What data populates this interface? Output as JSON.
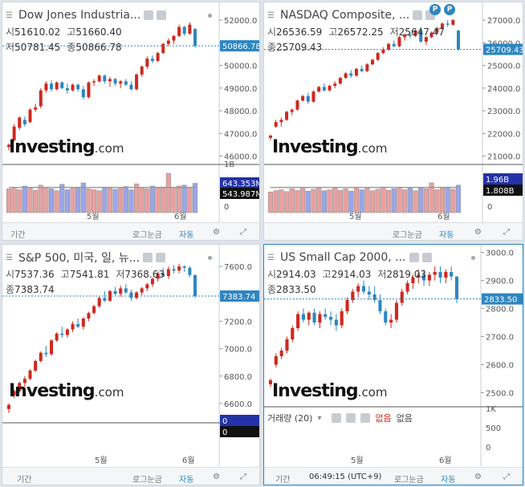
{
  "colors": {
    "up": "#d0281f",
    "down": "#2e86c1",
    "vol_up": "#e8a0a0",
    "vol_down": "#9aa6e8",
    "ma": "#9a9a9a"
  },
  "icons": {
    "settings": "gear-icon",
    "fullscreen": "fullscreen-icon",
    "collapse": "collapse-icon"
  },
  "footer_labels": {
    "period": "기간",
    "log": "로그눈금",
    "auto": "자동"
  },
  "time_label": "06:49:15 (UTC+9)",
  "ohlc_labels": {
    "open": "시",
    "high": "고",
    "low": "저",
    "close": "종"
  },
  "volume_legend": {
    "label": "거래량 (20)",
    "val1": "없음",
    "val2": "없음"
  },
  "logo": {
    "brand": "Investing",
    "domain": ".com"
  },
  "chart_data": [
    {
      "type": "candlestick",
      "title": "Dow Jones Industria...",
      "open": "51610.02",
      "high": "51660.40",
      "low": "50781.45",
      "close": "50866.78",
      "price_label": "50866.78",
      "yticks": [
        52000,
        51000,
        50000,
        49000,
        48000,
        47000,
        46000
      ],
      "ylim": [
        45700,
        52500
      ],
      "xticks": [
        "5월",
        "6월"
      ],
      "volume_ticks": [
        "1B",
        "0"
      ],
      "volume_labels": [
        "643.353M",
        "543.987M"
      ],
      "candles": [
        [
          46400,
          46550,
          46250,
          46500
        ],
        [
          46700,
          47400,
          46650,
          47300
        ],
        [
          47250,
          47750,
          47150,
          47700
        ],
        [
          47600,
          47750,
          47300,
          47400
        ],
        [
          47500,
          48100,
          47450,
          48050
        ],
        [
          48050,
          48300,
          47950,
          48150
        ],
        [
          48200,
          49000,
          48100,
          48900
        ],
        [
          48900,
          49300,
          48800,
          49200
        ],
        [
          49200,
          49350,
          48850,
          48950
        ],
        [
          48950,
          49300,
          48900,
          49250
        ],
        [
          49250,
          49300,
          48950,
          49000
        ],
        [
          49000,
          49200,
          48750,
          48900
        ],
        [
          48900,
          49200,
          48850,
          49150
        ],
        [
          49150,
          49200,
          48850,
          48950
        ],
        [
          48950,
          49100,
          48500,
          48600
        ],
        [
          48600,
          49300,
          48550,
          49250
        ],
        [
          49250,
          49400,
          49100,
          49300
        ],
        [
          49300,
          49600,
          49250,
          49550
        ],
        [
          49550,
          49600,
          49200,
          49300
        ],
        [
          49300,
          49500,
          49050,
          49400
        ],
        [
          49400,
          49450,
          49100,
          49200
        ],
        [
          49200,
          49350,
          49000,
          49300
        ],
        [
          49300,
          49400,
          49100,
          49150
        ],
        [
          49150,
          49300,
          48900,
          48950
        ],
        [
          48950,
          49650,
          48900,
          49600
        ],
        [
          49600,
          50000,
          49500,
          49950
        ],
        [
          49950,
          50400,
          49850,
          50300
        ],
        [
          50300,
          50450,
          50100,
          50200
        ],
        [
          50200,
          50600,
          50150,
          50550
        ],
        [
          50550,
          51000,
          50500,
          50950
        ],
        [
          50950,
          51200,
          50850,
          51100
        ],
        [
          51100,
          51350,
          50950,
          51300
        ],
        [
          51300,
          51800,
          51250,
          51700
        ],
        [
          51700,
          51750,
          51300,
          51400
        ],
        [
          51400,
          51900,
          51350,
          51800
        ],
        [
          51610,
          51660,
          50781,
          50867
        ]
      ],
      "volumes": [
        0.52,
        0.55,
        0.5,
        0.58,
        0.53,
        0.49,
        0.6,
        0.55,
        0.52,
        0.48,
        0.62,
        0.5,
        0.55,
        0.53,
        0.65,
        0.52,
        0.5,
        0.48,
        0.56,
        0.53,
        0.51,
        0.55,
        0.57,
        0.5,
        0.63,
        0.55,
        0.52,
        0.58,
        0.54,
        0.56,
        0.86,
        0.55,
        0.58,
        0.6,
        0.55,
        0.64
      ]
    },
    {
      "type": "candlestick",
      "title": "NASDAQ Composite, ...",
      "open": "26536.59",
      "high": "26572.25",
      "low": "25647.47",
      "close": "25709.43",
      "price_label": "25709.43",
      "yticks": [
        27000,
        26000,
        25000,
        24000,
        23000,
        22000,
        21000
      ],
      "ylim": [
        20700,
        27500
      ],
      "xticks": [
        "5월",
        "6월"
      ],
      "volume_ticks": [
        "0"
      ],
      "volume_labels": [
        "1.96B",
        "1.808B"
      ],
      "candles": [
        [
          21800,
          21950,
          21700,
          21900
        ],
        [
          22300,
          22600,
          22250,
          22500
        ],
        [
          22500,
          22700,
          22300,
          22600
        ],
        [
          22600,
          23000,
          22550,
          22950
        ],
        [
          22950,
          23100,
          22800,
          23050
        ],
        [
          23050,
          23500,
          23000,
          23450
        ],
        [
          23450,
          23700,
          23400,
          23650
        ],
        [
          23650,
          23800,
          23300,
          23400
        ],
        [
          23400,
          23900,
          23350,
          23850
        ],
        [
          23850,
          24100,
          23800,
          24050
        ],
        [
          24050,
          24200,
          23850,
          23900
        ],
        [
          23900,
          24150,
          23850,
          24100
        ],
        [
          24100,
          24300,
          24000,
          24200
        ],
        [
          24200,
          24500,
          24150,
          24450
        ],
        [
          24450,
          24700,
          24400,
          24650
        ],
        [
          24650,
          24800,
          24450,
          24550
        ],
        [
          24550,
          24900,
          24500,
          24850
        ],
        [
          24850,
          25000,
          24700,
          24750
        ],
        [
          24750,
          25100,
          24700,
          25050
        ],
        [
          25050,
          25300,
          25000,
          25250
        ],
        [
          25250,
          25600,
          25200,
          25550
        ],
        [
          25550,
          25800,
          25500,
          25700
        ],
        [
          25700,
          26000,
          25650,
          25950
        ],
        [
          25950,
          26100,
          25800,
          25850
        ],
        [
          25850,
          26300,
          25800,
          26250
        ],
        [
          26250,
          26400,
          26100,
          26350
        ],
        [
          26350,
          26500,
          26200,
          26300
        ],
        [
          26300,
          26600,
          26250,
          26550
        ],
        [
          26550,
          26700,
          26000,
          26050
        ],
        [
          26050,
          26300,
          25900,
          26250
        ],
        [
          26250,
          26500,
          26200,
          26450
        ],
        [
          26450,
          26700,
          26400,
          26650
        ],
        [
          26650,
          26900,
          26600,
          26850
        ],
        [
          26850,
          27000,
          26700,
          26800
        ],
        [
          26800,
          27050,
          26750,
          27000
        ],
        [
          26536,
          26572,
          25647,
          25709
        ]
      ],
      "volumes": [
        0.45,
        0.48,
        0.5,
        0.46,
        0.52,
        0.49,
        0.55,
        0.47,
        0.51,
        0.53,
        0.48,
        0.5,
        0.54,
        0.49,
        0.52,
        0.47,
        0.55,
        0.5,
        0.53,
        0.48,
        0.51,
        0.56,
        0.49,
        0.52,
        0.54,
        0.5,
        0.53,
        0.48,
        0.55,
        0.52,
        0.65,
        0.5,
        0.53,
        0.56,
        0.51,
        0.6
      ]
    },
    {
      "type": "candlestick",
      "title": "S&P 500, 미국, 일, 뉴...",
      "open": "7537.36",
      "high": "7541.81",
      "low": "7368.63",
      "close": "7383.74",
      "price_label": "7383.74",
      "yticks": [
        7600,
        7400,
        7200,
        7000,
        6800,
        6600
      ],
      "ylim": [
        6500,
        7700
      ],
      "xticks": [
        "5월",
        "6월"
      ],
      "volume_labels": [
        "0",
        "0"
      ],
      "candles": [
        [
          6560,
          6600,
          6530,
          6590
        ],
        [
          6660,
          6700,
          6640,
          6690
        ],
        [
          6690,
          6760,
          6680,
          6750
        ],
        [
          6750,
          6800,
          6720,
          6780
        ],
        [
          6780,
          6850,
          6770,
          6840
        ],
        [
          6840,
          6920,
          6830,
          6910
        ],
        [
          6910,
          6980,
          6900,
          6970
        ],
        [
          6970,
          7020,
          6940,
          6960
        ],
        [
          6960,
          7070,
          6950,
          7060
        ],
        [
          7060,
          7120,
          7050,
          7110
        ],
        [
          7110,
          7160,
          7080,
          7100
        ],
        [
          7100,
          7150,
          7080,
          7140
        ],
        [
          7140,
          7200,
          7120,
          7180
        ],
        [
          7180,
          7220,
          7150,
          7160
        ],
        [
          7160,
          7230,
          7140,
          7220
        ],
        [
          7220,
          7270,
          7200,
          7260
        ],
        [
          7260,
          7320,
          7250,
          7310
        ],
        [
          7310,
          7380,
          7300,
          7370
        ],
        [
          7370,
          7420,
          7340,
          7350
        ],
        [
          7350,
          7430,
          7340,
          7420
        ],
        [
          7420,
          7450,
          7390,
          7400
        ],
        [
          7400,
          7460,
          7380,
          7440
        ],
        [
          7440,
          7470,
          7400,
          7410
        ],
        [
          7410,
          7430,
          7350,
          7370
        ],
        [
          7370,
          7420,
          7360,
          7410
        ],
        [
          7410,
          7450,
          7390,
          7440
        ],
        [
          7440,
          7480,
          7420,
          7470
        ],
        [
          7470,
          7520,
          7450,
          7510
        ],
        [
          7510,
          7560,
          7490,
          7550
        ],
        [
          7550,
          7590,
          7520,
          7530
        ],
        [
          7530,
          7600,
          7510,
          7580
        ],
        [
          7580,
          7610,
          7550,
          7570
        ],
        [
          7570,
          7620,
          7550,
          7600
        ],
        [
          7600,
          7610,
          7560,
          7590
        ],
        [
          7590,
          7600,
          7520,
          7537
        ],
        [
          7537,
          7542,
          7369,
          7384
        ]
      ]
    },
    {
      "type": "candlestick",
      "title": "US Small Cap 2000, ...",
      "open": "2914.03",
      "high": "2914.03",
      "low": "2819.03",
      "close": "2833.50",
      "price_label": "2833.50",
      "yticks": [
        3000,
        2900,
        2800,
        2700,
        2600,
        2500
      ],
      "ylim": [
        2470,
        3010
      ],
      "xticks": [
        "5월",
        "6월"
      ],
      "volume_ticks": [
        "1K",
        "500",
        "0"
      ],
      "candles": [
        [
          2530,
          2550,
          2520,
          2545
        ],
        [
          2600,
          2640,
          2590,
          2630
        ],
        [
          2630,
          2660,
          2620,
          2650
        ],
        [
          2650,
          2700,
          2640,
          2690
        ],
        [
          2690,
          2740,
          2680,
          2730
        ],
        [
          2730,
          2790,
          2720,
          2780
        ],
        [
          2780,
          2800,
          2750,
          2760
        ],
        [
          2760,
          2790,
          2740,
          2785
        ],
        [
          2785,
          2800,
          2740,
          2750
        ],
        [
          2750,
          2790,
          2730,
          2780
        ],
        [
          2780,
          2800,
          2760,
          2770
        ],
        [
          2770,
          2790,
          2740,
          2760
        ],
        [
          2760,
          2780,
          2720,
          2740
        ],
        [
          2740,
          2800,
          2730,
          2790
        ],
        [
          2790,
          2840,
          2780,
          2830
        ],
        [
          2830,
          2870,
          2820,
          2860
        ],
        [
          2860,
          2890,
          2840,
          2880
        ],
        [
          2880,
          2900,
          2850,
          2860
        ],
        [
          2860,
          2880,
          2830,
          2850
        ],
        [
          2850,
          2880,
          2820,
          2830
        ],
        [
          2830,
          2850,
          2780,
          2790
        ],
        [
          2790,
          2800,
          2740,
          2750
        ],
        [
          2750,
          2780,
          2730,
          2760
        ],
        [
          2760,
          2830,
          2750,
          2820
        ],
        [
          2820,
          2870,
          2810,
          2860
        ],
        [
          2860,
          2900,
          2850,
          2890
        ],
        [
          2890,
          2920,
          2870,
          2910
        ],
        [
          2910,
          2940,
          2890,
          2920
        ],
        [
          2920,
          2940,
          2880,
          2900
        ],
        [
          2900,
          2930,
          2880,
          2920
        ],
        [
          2920,
          2950,
          2900,
          2930
        ],
        [
          2930,
          2950,
          2890,
          2910
        ],
        [
          2910,
          2940,
          2890,
          2930
        ],
        [
          2930,
          2950,
          2900,
          2914
        ],
        [
          2914,
          2914,
          2819,
          2834
        ]
      ]
    }
  ]
}
